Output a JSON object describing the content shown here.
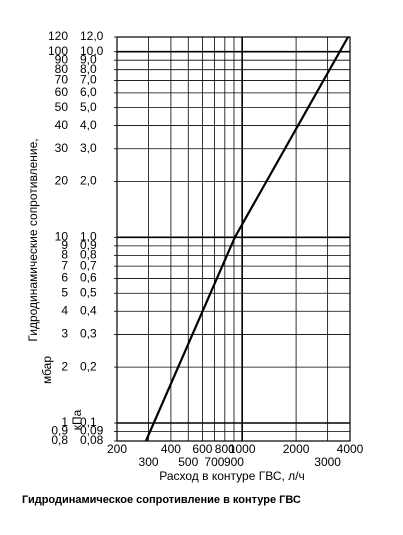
{
  "chart_data": {
    "type": "line",
    "ylabel": "Гидродинамические сопротивление,",
    "y_unit": "мбар",
    "y2_unit": "кПа",
    "xlabel": "Расход в контуре ГВС, л/ч",
    "caption": "Гидродинамическое сопротивление в контуре ГВС",
    "log_x": true,
    "log_y": true,
    "grid": true,
    "xlim": [
      200,
      4000
    ],
    "xticks": [
      200,
      300,
      400,
      500,
      600,
      700,
      800,
      900,
      1000,
      2000,
      3000,
      4000
    ],
    "ylim": [
      0.8,
      120
    ],
    "yticks": [
      {
        "value": 0.8,
        "label": "0,8"
      },
      {
        "value": 0.9,
        "label": "0,9"
      },
      1,
      2,
      3,
      4,
      5,
      6,
      7,
      8,
      9,
      10,
      20,
      30,
      40,
      50,
      60,
      70,
      80,
      90,
      100,
      120
    ],
    "y2lim": [
      0.08,
      12.0
    ],
    "y2ticks": [
      {
        "value": 0.08,
        "label": "0,08"
      },
      {
        "value": 0.09,
        "label": "0,09"
      },
      {
        "value": 0.1,
        "label": "0,1"
      },
      {
        "value": 0.2,
        "label": "0,2"
      },
      {
        "value": 0.3,
        "label": "0,3"
      },
      {
        "value": 0.4,
        "label": "0,4"
      },
      {
        "value": 0.5,
        "label": "0,5"
      },
      {
        "value": 0.6,
        "label": "0,6"
      },
      {
        "value": 0.7,
        "label": "0,7"
      },
      {
        "value": 0.8,
        "label": "0,8"
      },
      {
        "value": 0.9,
        "label": "0,9"
      },
      {
        "value": 1.0,
        "label": "1,0"
      },
      {
        "value": 2.0,
        "label": "2,0"
      },
      {
        "value": 3.0,
        "label": "3,0"
      },
      {
        "value": 4.0,
        "label": "4,0"
      },
      {
        "value": 5.0,
        "label": "5,0"
      },
      {
        "value": 6.0,
        "label": "6,0"
      },
      {
        "value": 7.0,
        "label": "7,0"
      },
      {
        "value": 8.0,
        "label": "8,0"
      },
      {
        "value": 9.0,
        "label": "9,0"
      },
      {
        "value": 10.0,
        "label": "10,0"
      },
      {
        "value": 12.0,
        "label": "12,0"
      }
    ],
    "series": [
      {
        "color": "#000000",
        "x": [
          290,
          910,
          3900
        ],
        "values": [
          0.8,
          10,
          120
        ]
      }
    ]
  }
}
